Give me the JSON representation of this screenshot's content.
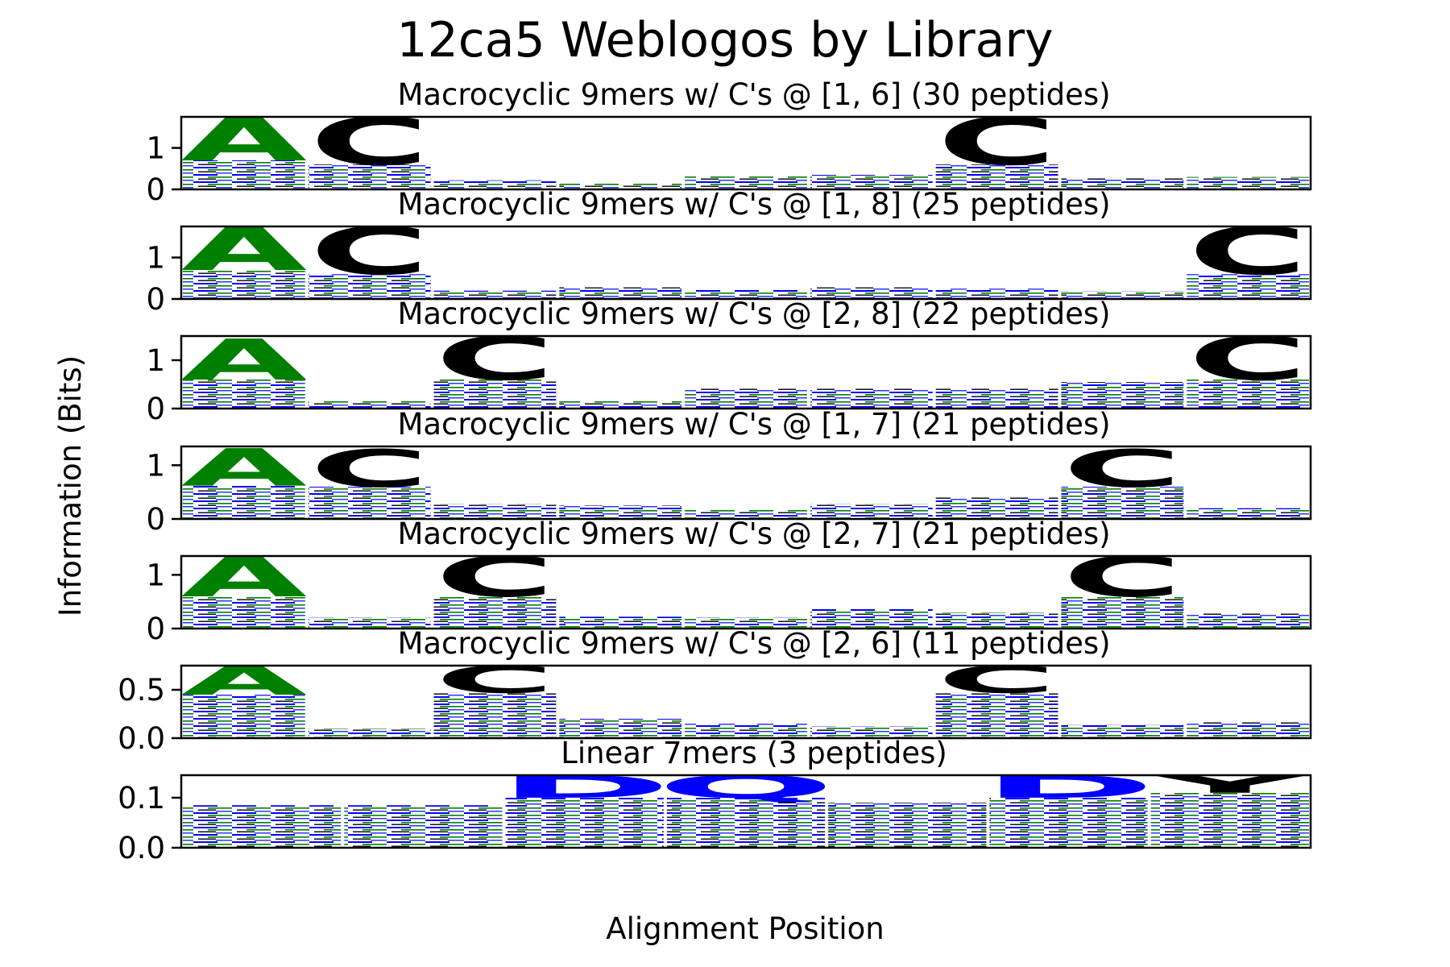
{
  "colors": {
    "acidic": "#0000ff",
    "polar": "#008000",
    "hydrophobic": "#000000"
  },
  "figure": {
    "title": "12ca5 Weblogos by Library",
    "xlabel": "Alignment Position",
    "ylabel": "Information (Bits)"
  },
  "chart_data": [
    {
      "type": "sequence-logo",
      "title": "Macrocyclic 9mers w/ C's @ [1, 6] (30 peptides)",
      "ylim": [
        0,
        1.75
      ],
      "yticks": [
        {
          "v": 0,
          "label": "0"
        },
        {
          "v": 1,
          "label": "1"
        }
      ],
      "positions": [
        {
          "base": 0.7,
          "letters": [
            {
              "aa": "A",
              "bits": 1.05,
              "color": "polar"
            }
          ]
        },
        {
          "base": 0.6,
          "letters": [
            {
              "aa": "C",
              "bits": 1.15,
              "color": "hydrophobic"
            }
          ]
        },
        {
          "base": 0.22,
          "letters": []
        },
        {
          "base": 0.15,
          "letters": []
        },
        {
          "base": 0.32,
          "letters": []
        },
        {
          "base": 0.35,
          "letters": []
        },
        {
          "base": 0.6,
          "letters": [
            {
              "aa": "C",
              "bits": 1.15,
              "color": "hydrophobic"
            }
          ]
        },
        {
          "base": 0.28,
          "letters": []
        },
        {
          "base": 0.3,
          "letters": []
        }
      ]
    },
    {
      "type": "sequence-logo",
      "title": "Macrocyclic 9mers w/ C's @ [1, 8] (25 peptides)",
      "ylim": [
        0,
        1.75
      ],
      "yticks": [
        {
          "v": 0,
          "label": "0"
        },
        {
          "v": 1,
          "label": "1"
        }
      ],
      "positions": [
        {
          "base": 0.7,
          "letters": [
            {
              "aa": "A",
              "bits": 1.05,
              "color": "polar"
            }
          ]
        },
        {
          "base": 0.6,
          "letters": [
            {
              "aa": "C",
              "bits": 1.15,
              "color": "hydrophobic"
            }
          ]
        },
        {
          "base": 0.2,
          "letters": []
        },
        {
          "base": 0.28,
          "letters": []
        },
        {
          "base": 0.22,
          "letters": []
        },
        {
          "base": 0.28,
          "letters": []
        },
        {
          "base": 0.25,
          "letters": []
        },
        {
          "base": 0.18,
          "letters": []
        },
        {
          "base": 0.6,
          "letters": [
            {
              "aa": "C",
              "bits": 1.15,
              "color": "hydrophobic"
            }
          ]
        }
      ]
    },
    {
      "type": "sequence-logo",
      "title": "Macrocyclic 9mers w/ C's @ [2, 8] (22 peptides)",
      "ylim": [
        0,
        1.5
      ],
      "yticks": [
        {
          "v": 0,
          "label": "0"
        },
        {
          "v": 1,
          "label": "1"
        }
      ],
      "positions": [
        {
          "base": 0.6,
          "letters": [
            {
              "aa": "A",
              "bits": 0.85,
              "color": "polar"
            }
          ]
        },
        {
          "base": 0.15,
          "letters": []
        },
        {
          "base": 0.6,
          "letters": [
            {
              "aa": "C",
              "bits": 0.9,
              "color": "hydrophobic"
            }
          ]
        },
        {
          "base": 0.15,
          "letters": []
        },
        {
          "base": 0.42,
          "letters": []
        },
        {
          "base": 0.42,
          "letters": []
        },
        {
          "base": 0.42,
          "letters": []
        },
        {
          "base": 0.55,
          "letters": []
        },
        {
          "base": 0.6,
          "letters": [
            {
              "aa": "C",
              "bits": 0.9,
              "color": "hydrophobic"
            }
          ]
        }
      ]
    },
    {
      "type": "sequence-logo",
      "title": "Macrocyclic 9mers w/ C's @ [1, 7] (21 peptides)",
      "ylim": [
        0,
        1.35
      ],
      "yticks": [
        {
          "v": 0,
          "label": "0"
        },
        {
          "v": 1,
          "label": "1"
        }
      ],
      "positions": [
        {
          "base": 0.62,
          "letters": [
            {
              "aa": "A",
              "bits": 0.7,
              "color": "polar"
            }
          ]
        },
        {
          "base": 0.6,
          "letters": [
            {
              "aa": "C",
              "bits": 0.7,
              "color": "hydrophobic"
            }
          ]
        },
        {
          "base": 0.28,
          "letters": []
        },
        {
          "base": 0.25,
          "letters": []
        },
        {
          "base": 0.18,
          "letters": []
        },
        {
          "base": 0.28,
          "letters": []
        },
        {
          "base": 0.4,
          "letters": []
        },
        {
          "base": 0.6,
          "letters": [
            {
              "aa": "C",
              "bits": 0.7,
              "color": "hydrophobic"
            }
          ]
        },
        {
          "base": 0.2,
          "letters": []
        }
      ]
    },
    {
      "type": "sequence-logo",
      "title": "Macrocyclic 9mers w/ C's @ [2, 7] (21 peptides)",
      "ylim": [
        0,
        1.35
      ],
      "yticks": [
        {
          "v": 0,
          "label": "0"
        },
        {
          "v": 1,
          "label": "1"
        }
      ],
      "positions": [
        {
          "base": 0.6,
          "letters": [
            {
              "aa": "A",
              "bits": 0.75,
              "color": "polar"
            }
          ]
        },
        {
          "base": 0.2,
          "letters": []
        },
        {
          "base": 0.6,
          "letters": [
            {
              "aa": "C",
              "bits": 0.75,
              "color": "hydrophobic"
            }
          ]
        },
        {
          "base": 0.22,
          "letters": []
        },
        {
          "base": 0.2,
          "letters": []
        },
        {
          "base": 0.36,
          "letters": []
        },
        {
          "base": 0.3,
          "letters": []
        },
        {
          "base": 0.6,
          "letters": [
            {
              "aa": "C",
              "bits": 0.75,
              "color": "hydrophobic"
            }
          ]
        },
        {
          "base": 0.28,
          "letters": []
        }
      ]
    },
    {
      "type": "sequence-logo",
      "title": "Macrocyclic 9mers w/ C's @ [2, 6] (11 peptides)",
      "ylim": [
        0,
        0.75
      ],
      "yticks": [
        {
          "v": 0,
          "label": "0.0"
        },
        {
          "v": 0.5,
          "label": "0.5"
        }
      ],
      "positions": [
        {
          "base": 0.45,
          "letters": [
            {
              "aa": "A",
              "bits": 0.3,
              "color": "polar"
            }
          ]
        },
        {
          "base": 0.1,
          "letters": []
        },
        {
          "base": 0.47,
          "letters": [
            {
              "aa": "C",
              "bits": 0.28,
              "color": "hydrophobic"
            }
          ]
        },
        {
          "base": 0.2,
          "letters": []
        },
        {
          "base": 0.15,
          "letters": []
        },
        {
          "base": 0.12,
          "letters": []
        },
        {
          "base": 0.47,
          "letters": [
            {
              "aa": "C",
              "bits": 0.28,
              "color": "hydrophobic"
            }
          ]
        },
        {
          "base": 0.14,
          "letters": []
        },
        {
          "base": 0.17,
          "letters": []
        }
      ]
    },
    {
      "type": "sequence-logo",
      "title": "Linear 7mers (3 peptides)",
      "ylim": [
        0,
        0.145
      ],
      "yticks": [
        {
          "v": 0,
          "label": "0.0"
        },
        {
          "v": 0.1,
          "label": "0.1"
        }
      ],
      "positions": [
        {
          "base": 0.085,
          "letters": []
        },
        {
          "base": 0.085,
          "letters": []
        },
        {
          "base": 0.1,
          "letters": [
            {
              "aa": "D",
              "bits": 0.045,
              "color": "acidic"
            }
          ]
        },
        {
          "base": 0.1,
          "letters": [
            {
              "aa": "Q",
              "bits": 0.045,
              "color": "acidic"
            }
          ]
        },
        {
          "base": 0.09,
          "letters": []
        },
        {
          "base": 0.1,
          "letters": [
            {
              "aa": "D",
              "bits": 0.045,
              "color": "acidic"
            }
          ]
        },
        {
          "base": 0.11,
          "letters": [
            {
              "aa": "Y",
              "bits": 0.035,
              "color": "hydrophobic"
            }
          ]
        }
      ]
    }
  ]
}
